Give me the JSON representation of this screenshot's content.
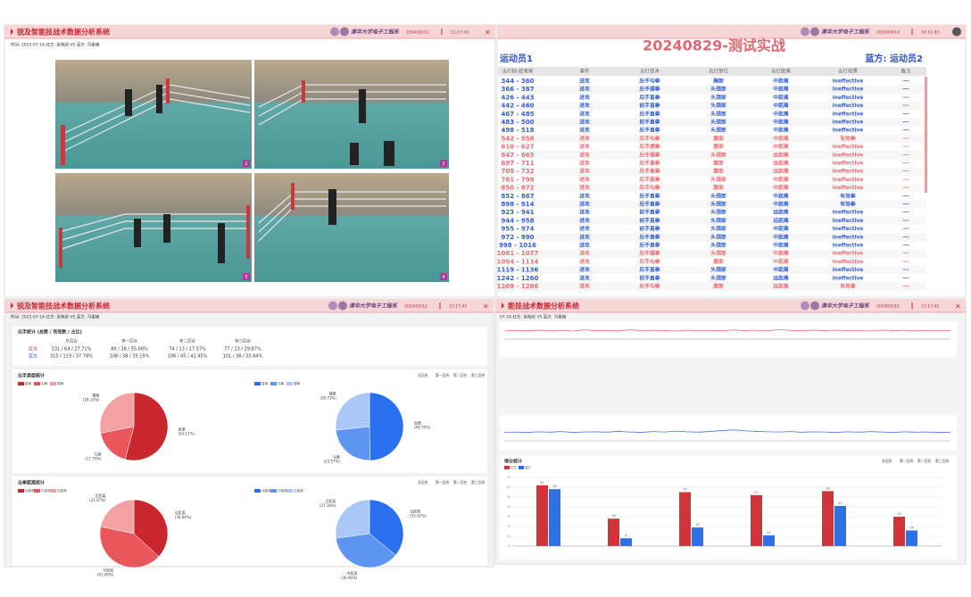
{
  "video_panel": {
    "header": {
      "title": "锐及智能技战术数据分析系统",
      "org": "清华大学电子工程系",
      "date": "2024/02/12",
      "time": "11:17:42",
      "close": "×"
    },
    "info": "时间: 2025-07-16  红方: 张晓欣  VS  蓝方: 冯俊楠",
    "frames": [
      "1",
      "2",
      "3",
      "4"
    ]
  },
  "event_panel": {
    "header": {
      "org": "清华大学电子工程系",
      "date": "2024/09/14",
      "time": "14:11:43"
    },
    "title": "20240829-测试实战",
    "red_name": "运动员1",
    "blue_name": "蓝方: 运动员2",
    "colors": {
      "red": "#ec6d74",
      "blue": "#3560d4"
    },
    "table": {
      "columns": [
        "击打帧-结束帧",
        "事件",
        "击打技术",
        "击打部位",
        "击打距离",
        "击打效果",
        "备注"
      ],
      "rows": [
        [
          "344 - 360",
          "进攻",
          "后手勾拳",
          "胸部",
          "中距离",
          "ineffective",
          "---"
        ],
        [
          "366 - 387",
          "进攻",
          "后手摆拳",
          "头颈部",
          "中距离",
          "ineffective",
          "---"
        ],
        [
          "426 - 443",
          "进攻",
          "后手直拳",
          "头颈部",
          "中距离",
          "ineffective",
          "---"
        ],
        [
          "442 - 460",
          "进攻",
          "前手直拳",
          "头颈部",
          "中距离",
          "ineffective",
          "---"
        ],
        [
          "467 - 485",
          "进攻",
          "后手直拳",
          "头颈部",
          "中距离",
          "ineffective",
          "---"
        ],
        [
          "483 - 500",
          "进攻",
          "前手直拳",
          "头颈部",
          "中距离",
          "ineffective",
          "---"
        ],
        [
          "498 - 518",
          "进攻",
          "后手直拳",
          "头颈部",
          "中距离",
          "ineffective",
          "---"
        ],
        [
          "542 - 558",
          "进攻",
          "后手勾拳",
          "腹部",
          "中距离",
          "有效拳",
          "---"
        ],
        [
          "610 - 627",
          "进攻",
          "后手摆拳",
          "腹部",
          "中距离",
          "ineffective",
          "---"
        ],
        [
          "647 - 665",
          "进攻",
          "后手摆拳",
          "头颈部",
          "远距离",
          "ineffective",
          "---"
        ],
        [
          "697 - 711",
          "进攻",
          "后手直拳",
          "腹部",
          "远距离",
          "ineffective",
          "---"
        ],
        [
          "709 - 732",
          "进攻",
          "后手直拳",
          "腹部",
          "远距离",
          "ineffective",
          "---"
        ],
        [
          "781 - 799",
          "进攻",
          "后手直拳",
          "头颈部",
          "中距离",
          "ineffective",
          "---"
        ],
        [
          "850 - 872",
          "进攻",
          "后手勾拳",
          "腹部",
          "中距离",
          "ineffective",
          "---"
        ],
        [
          "852 - 867",
          "进攻",
          "后手直拳",
          "头颈部",
          "中距离",
          "有效拳",
          "---"
        ],
        [
          "898 - 914",
          "进攻",
          "后手直拳",
          "头颈部",
          "中距离",
          "有效拳",
          "---"
        ],
        [
          "923 - 941",
          "进攻",
          "前手直拳",
          "头颈部",
          "远距离",
          "ineffective",
          "---"
        ],
        [
          "944 - 958",
          "进攻",
          "前手直拳",
          "头颈部",
          "远距离",
          "ineffective",
          "---"
        ],
        [
          "955 - 974",
          "进攻",
          "前手直拳",
          "头颈部",
          "中距离",
          "ineffective",
          "---"
        ],
        [
          "972 - 990",
          "进攻",
          "后手直拳",
          "头颈部",
          "中距离",
          "ineffective",
          "---"
        ],
        [
          "998 - 1016",
          "进攻",
          "后手直拳",
          "头颈部",
          "中距离",
          "ineffective",
          "---"
        ],
        [
          "1061 - 1077",
          "进攻",
          "后手摆拳",
          "头颈部",
          "中距离",
          "ineffective",
          "---"
        ],
        [
          "1094 - 1114",
          "进攻",
          "后手勾拳",
          "腹部",
          "中距离",
          "ineffective",
          "---"
        ],
        [
          "1119 - 1136",
          "进攻",
          "后手直拳",
          "头颈部",
          "中距离",
          "ineffective",
          "---"
        ],
        [
          "1242 - 1260",
          "进攻",
          "前手直拳",
          "头颈部",
          "远距离",
          "ineffective",
          "---"
        ],
        [
          "1269 - 1286",
          "进攻",
          "后手勾拳",
          "腹部",
          "远距离",
          "有效拳",
          "---"
        ]
      ],
      "sides": [
        "blue",
        "blue",
        "blue",
        "blue",
        "blue",
        "blue",
        "blue",
        "red",
        "red",
        "red",
        "red",
        "red",
        "red",
        "red",
        "blue",
        "blue",
        "blue",
        "blue",
        "blue",
        "blue",
        "blue",
        "red",
        "red",
        "blue",
        "blue",
        "red"
      ]
    }
  },
  "stats_panel": {
    "header": {
      "title": "锐及智能技战术数据分析系统",
      "org": "清华大学电子工程系",
      "date": "2024/02/12",
      "time": "11:17:42",
      "close": "×"
    },
    "info": "时间: 2025-07-16  红方: 张晓欣  VS  蓝方: 冯俊楠",
    "shots": {
      "title": "出手统计 (总数 / 有效数 / 占比)",
      "columns": [
        "总回合",
        "第一回合",
        "第二回合",
        "第三回合"
      ],
      "rows": [
        {
          "name": "红方",
          "cells": [
            "231 / 64 / 27.71%",
            "80 / 28 / 35.00%",
            "74 / 13 / 17.57%",
            "77 / 23 / 29.87%"
          ]
        },
        {
          "name": "蓝方",
          "cells": [
            "315 / 119 / 37.78%",
            "108 / 38 / 35.19%",
            "106 / 45 / 42.45%",
            "101 / 36 / 35.64%"
          ]
        }
      ]
    }
  },
  "timeline_panel": {
    "header": {
      "title": "能技战术数据分析系统",
      "org": "清华大学电子工程系",
      "date": "2024/02/12",
      "time": "11:17:42",
      "close": "×"
    },
    "info": "07-16  红方: 张晓欣  VS  蓝方: 冯俊楠"
  },
  "chart_data": [
    {
      "type": "pie",
      "title": "出手类型统计",
      "tabs": [
        "总回合",
        "第一回合",
        "第二回合",
        "第三回合"
      ],
      "pies": [
        {
          "categories": [
            "直拳",
            "勾拳",
            "摆拳"
          ],
          "values": [
            54.11,
            17.75,
            28.14
          ],
          "value_labels": [
            "(54.11%)",
            "(17.75%)",
            "(28.14%)"
          ],
          "colors": [
            "#c9262d",
            "#e9565b",
            "#f4a1a3"
          ]
        },
        {
          "categories": [
            "直拳",
            "勾拳",
            "摆拳"
          ],
          "values": [
            49.7,
            23.57,
            26.73
          ],
          "value_labels": [
            "(49.70%)",
            "(23.57%)",
            "(26.73%)"
          ],
          "colors": [
            "#2a6ff0",
            "#5c95f2",
            "#a9c7f7"
          ]
        }
      ]
    },
    {
      "type": "pie",
      "title": "出拳距离统计",
      "tabs": [
        "总回合",
        "第一回合",
        "第二回合",
        "第三回合"
      ],
      "pies": [
        {
          "categories": [
            "远距离",
            "中距离",
            "近距离"
          ],
          "values": [
            36.84,
            41.49,
            21.67
          ],
          "value_labels": [
            "(36.84%)",
            "(41.49%)",
            "(21.67%)"
          ],
          "colors": [
            "#c9262d",
            "#e9565b",
            "#f4a1a3"
          ]
        },
        {
          "categories": [
            "远距离",
            "中距离",
            "近距离"
          ],
          "values": [
            35.92,
            36.9,
            27.18
          ],
          "value_labels": [
            "(35.92%)",
            "(36.90%)",
            "(27.18%)"
          ],
          "colors": [
            "#2a6ff0",
            "#5c95f2",
            "#a9c7f7"
          ]
        }
      ]
    },
    {
      "type": "line",
      "color": "#e0707a",
      "ylim": [
        0,
        10
      ],
      "values": [
        5,
        5.4,
        5.1,
        5.6,
        5.2,
        5.5,
        5.0,
        5.7,
        5.3,
        5.4,
        5.1,
        5.8,
        5.2,
        5.5,
        5.3,
        5.0,
        5.6,
        5.2,
        5.4,
        5.1,
        5.7,
        5.3,
        5.5,
        5.2,
        5.9,
        5.4,
        5.1,
        5.6,
        5.3,
        5.5,
        5.2,
        5.4,
        5.0,
        5.6,
        5.3,
        5.5,
        5.1,
        5.4,
        5.2,
        5.3
      ]
    },
    {
      "type": "line",
      "color": "#4a78e0",
      "ylim": [
        0,
        10
      ],
      "values": [
        4.2,
        4.5,
        4.3,
        4.6,
        4.4,
        4.7,
        4.3,
        4.5,
        4.6,
        4.4,
        4.8,
        4.5,
        4.3,
        4.7,
        4.5,
        4.9,
        4.6,
        4.4,
        4.8,
        5.2,
        5.6,
        5.1,
        4.8,
        4.6,
        4.5,
        4.7,
        4.4,
        4.6,
        4.5,
        4.3,
        4.6,
        4.4,
        4.7,
        4.5,
        4.3,
        4.6,
        4.4,
        4.5,
        4.3,
        4.4
      ]
    },
    {
      "type": "bar",
      "title": "得分统计",
      "tabs": [
        "总回合",
        "第一回合",
        "第二回合",
        "第三回合"
      ],
      "categories": [
        null,
        null,
        null,
        null,
        null,
        null
      ],
      "series": [
        {
          "name": "红方",
          "color": "#d0343b",
          "values": [
            62,
            28,
            55,
            52,
            56,
            30
          ]
        },
        {
          "name": "蓝方",
          "color": "#2f6fe6",
          "values": [
            58,
            8,
            19,
            11,
            41,
            16
          ]
        }
      ],
      "ylim": [
        0,
        70
      ],
      "yticks": [
        0,
        10,
        20,
        30,
        40,
        50,
        60,
        70
      ],
      "grid": true
    }
  ]
}
